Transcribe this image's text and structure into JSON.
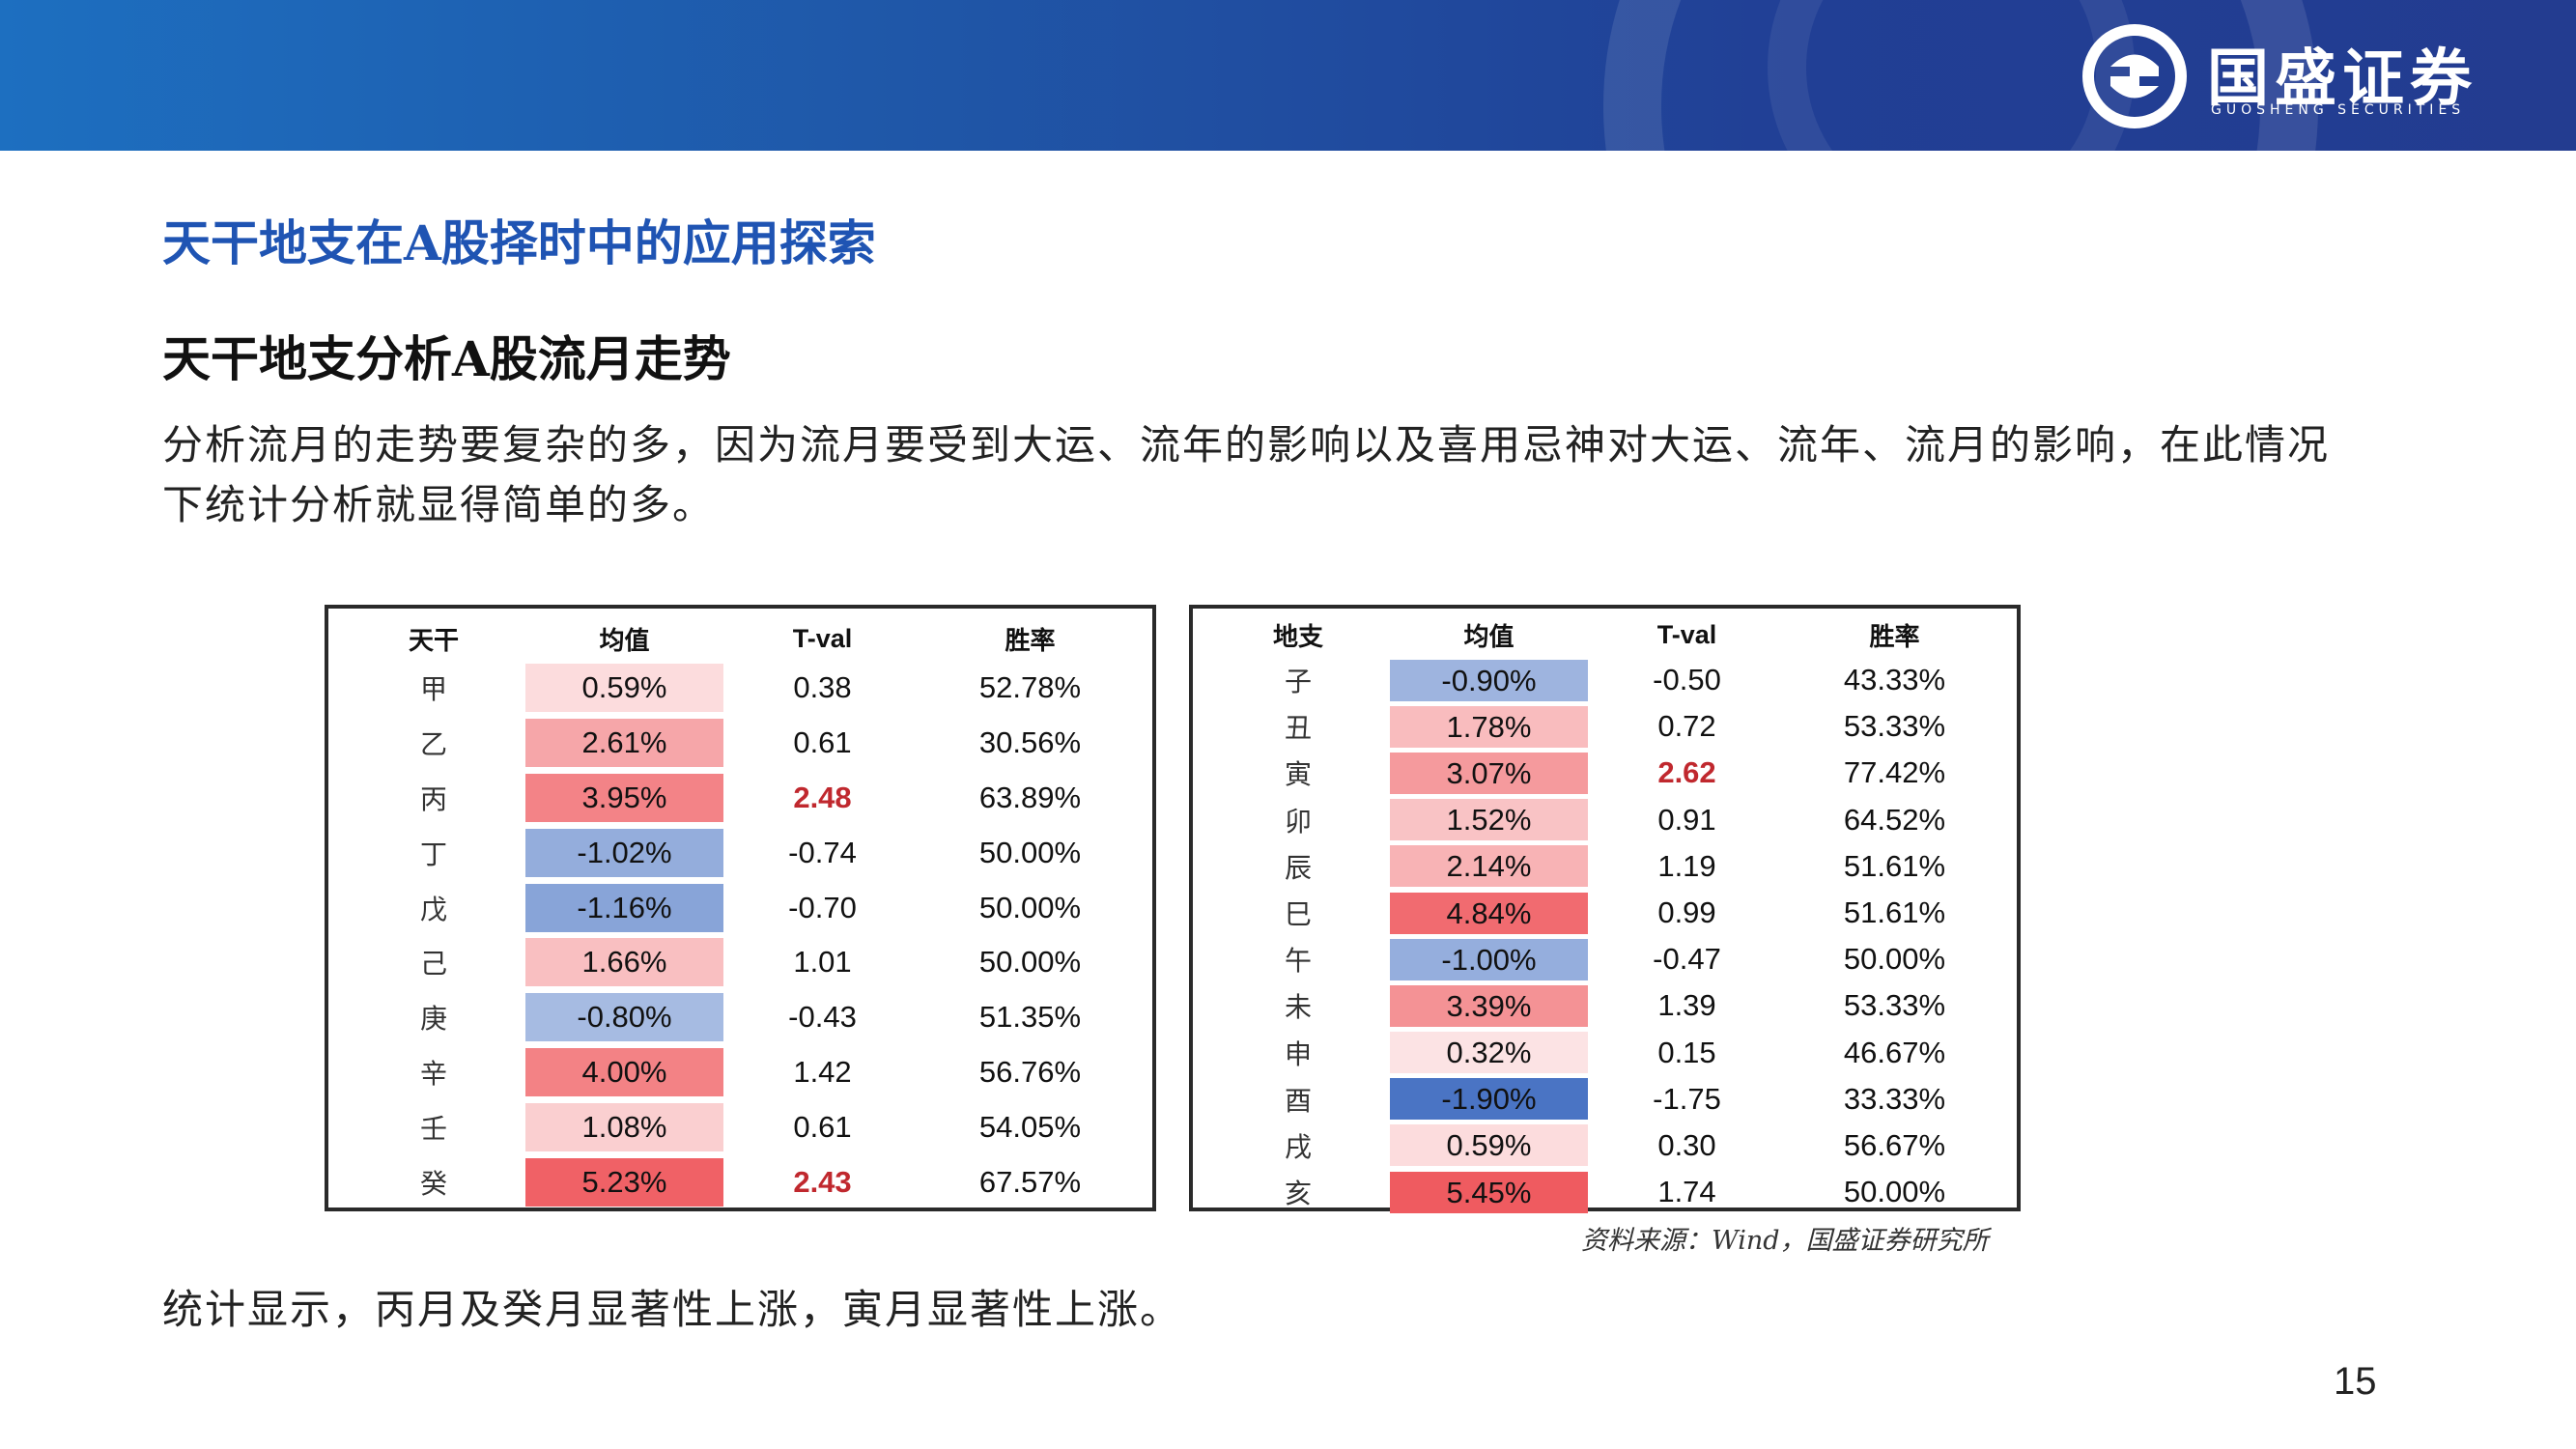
{
  "header": {
    "logo_cn": "国盛证券",
    "logo_en": "GUOSHENG SECURITIES",
    "brand_color": "#213f95"
  },
  "page_title": "天干地支在A股择时中的应用探索",
  "section_title": "天干地支分析A股流月走势",
  "intro_text": "分析流月的走势要复杂的多，因为流月要受到大运、流年的影响以及喜用忌神对大运、流年、流月的影响，在此情况下统计分析就显得简单的多。",
  "tiangan_table": {
    "headers": [
      "天干",
      "均值",
      "T-val",
      "胜率"
    ],
    "rows": [
      {
        "label": "甲",
        "mean": "0.59%",
        "tval": "0.38",
        "win": "52.78%",
        "mean_num": 0.59,
        "sig": false
      },
      {
        "label": "乙",
        "mean": "2.61%",
        "tval": "0.61",
        "win": "30.56%",
        "mean_num": 2.61,
        "sig": false
      },
      {
        "label": "丙",
        "mean": "3.95%",
        "tval": "2.48",
        "win": "63.89%",
        "mean_num": 3.95,
        "sig": true
      },
      {
        "label": "丁",
        "mean": "-1.02%",
        "tval": "-0.74",
        "win": "50.00%",
        "mean_num": -1.02,
        "sig": false
      },
      {
        "label": "戊",
        "mean": "-1.16%",
        "tval": "-0.70",
        "win": "50.00%",
        "mean_num": -1.16,
        "sig": false
      },
      {
        "label": "己",
        "mean": "1.66%",
        "tval": "1.01",
        "win": "50.00%",
        "mean_num": 1.66,
        "sig": false
      },
      {
        "label": "庚",
        "mean": "-0.80%",
        "tval": "-0.43",
        "win": "51.35%",
        "mean_num": -0.8,
        "sig": false
      },
      {
        "label": "辛",
        "mean": "4.00%",
        "tval": "1.42",
        "win": "56.76%",
        "mean_num": 4.0,
        "sig": false
      },
      {
        "label": "壬",
        "mean": "1.08%",
        "tval": "0.61",
        "win": "54.05%",
        "mean_num": 1.08,
        "sig": false
      },
      {
        "label": "癸",
        "mean": "5.23%",
        "tval": "2.43",
        "win": "67.57%",
        "mean_num": 5.23,
        "sig": true
      }
    ]
  },
  "dizhi_table": {
    "headers": [
      "地支",
      "均值",
      "T-val",
      "胜率"
    ],
    "rows": [
      {
        "label": "子",
        "mean": "-0.90%",
        "tval": "-0.50",
        "win": "43.33%",
        "mean_num": -0.9,
        "sig": false
      },
      {
        "label": "丑",
        "mean": "1.78%",
        "tval": "0.72",
        "win": "53.33%",
        "mean_num": 1.78,
        "sig": false
      },
      {
        "label": "寅",
        "mean": "3.07%",
        "tval": "2.62",
        "win": "77.42%",
        "mean_num": 3.07,
        "sig": true
      },
      {
        "label": "卯",
        "mean": "1.52%",
        "tval": "0.91",
        "win": "64.52%",
        "mean_num": 1.52,
        "sig": false
      },
      {
        "label": "辰",
        "mean": "2.14%",
        "tval": "1.19",
        "win": "51.61%",
        "mean_num": 2.14,
        "sig": false
      },
      {
        "label": "巳",
        "mean": "4.84%",
        "tval": "0.99",
        "win": "51.61%",
        "mean_num": 4.84,
        "sig": false
      },
      {
        "label": "午",
        "mean": "-1.00%",
        "tval": "-0.47",
        "win": "50.00%",
        "mean_num": -1.0,
        "sig": false
      },
      {
        "label": "未",
        "mean": "3.39%",
        "tval": "1.39",
        "win": "53.33%",
        "mean_num": 3.39,
        "sig": false
      },
      {
        "label": "申",
        "mean": "0.32%",
        "tval": "0.15",
        "win": "46.67%",
        "mean_num": 0.32,
        "sig": false
      },
      {
        "label": "酉",
        "mean": "-1.90%",
        "tval": "-1.75",
        "win": "33.33%",
        "mean_num": -1.9,
        "sig": false
      },
      {
        "label": "戌",
        "mean": "0.59%",
        "tval": "0.30",
        "win": "56.67%",
        "mean_num": 0.59,
        "sig": false
      },
      {
        "label": "亥",
        "mean": "5.45%",
        "tval": "1.74",
        "win": "50.00%",
        "mean_num": 5.45,
        "sig": false
      }
    ]
  },
  "heat_colors": {
    "positive": "#ef5a5f",
    "negative": "#4a74c4",
    "significant_text": "#c0282e"
  },
  "source_note": "资料来源：Wind，国盛证券研究所",
  "conclusion": "统计显示，丙月及癸月显著性上涨，寅月显著性上涨。",
  "page_number": "15"
}
